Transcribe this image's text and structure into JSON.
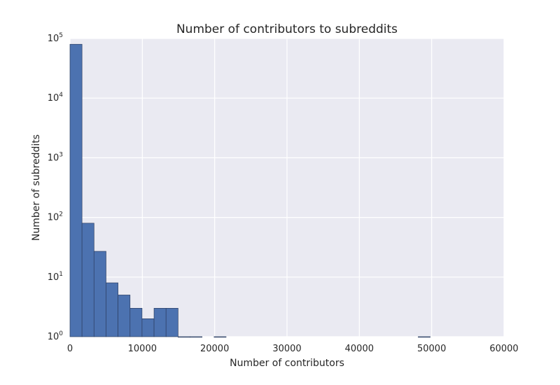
{
  "chart_data": {
    "type": "bar",
    "title": "Number of contributors to subreddits",
    "xlabel": "Number of contributors",
    "ylabel": "Number of subreddits",
    "xlim": [
      0,
      60000
    ],
    "ylim": [
      1,
      100000
    ],
    "yscale": "log",
    "grid": true,
    "x_ticks": [
      "0",
      "10000",
      "20000",
      "30000",
      "40000",
      "50000",
      "60000"
    ],
    "y_ticks": [
      {
        "base": "10",
        "exp": "0"
      },
      {
        "base": "10",
        "exp": "1"
      },
      {
        "base": "10",
        "exp": "2"
      },
      {
        "base": "10",
        "exp": "3"
      },
      {
        "base": "10",
        "exp": "4"
      },
      {
        "base": "10",
        "exp": "5"
      }
    ],
    "bins": [
      {
        "x0": 0,
        "x1": 1660,
        "count": 80000
      },
      {
        "x0": 1660,
        "x1": 3320,
        "count": 80
      },
      {
        "x0": 3320,
        "x1": 4980,
        "count": 27
      },
      {
        "x0": 4980,
        "x1": 6640,
        "count": 8
      },
      {
        "x0": 6640,
        "x1": 8300,
        "count": 5
      },
      {
        "x0": 8300,
        "x1": 9960,
        "count": 3
      },
      {
        "x0": 9960,
        "x1": 11620,
        "count": 2
      },
      {
        "x0": 11620,
        "x1": 13280,
        "count": 3
      },
      {
        "x0": 13280,
        "x1": 14940,
        "count": 3
      },
      {
        "x0": 14940,
        "x1": 16600,
        "count": 1
      },
      {
        "x0": 16600,
        "x1": 18260,
        "count": 1
      },
      {
        "x0": 19920,
        "x1": 21580,
        "count": 1
      },
      {
        "x0": 48140,
        "x1": 49800,
        "count": 1
      }
    ],
    "bar_color": "#4c72b0",
    "background_color": "#eaeaf2",
    "grid_color": "#ffffff"
  }
}
